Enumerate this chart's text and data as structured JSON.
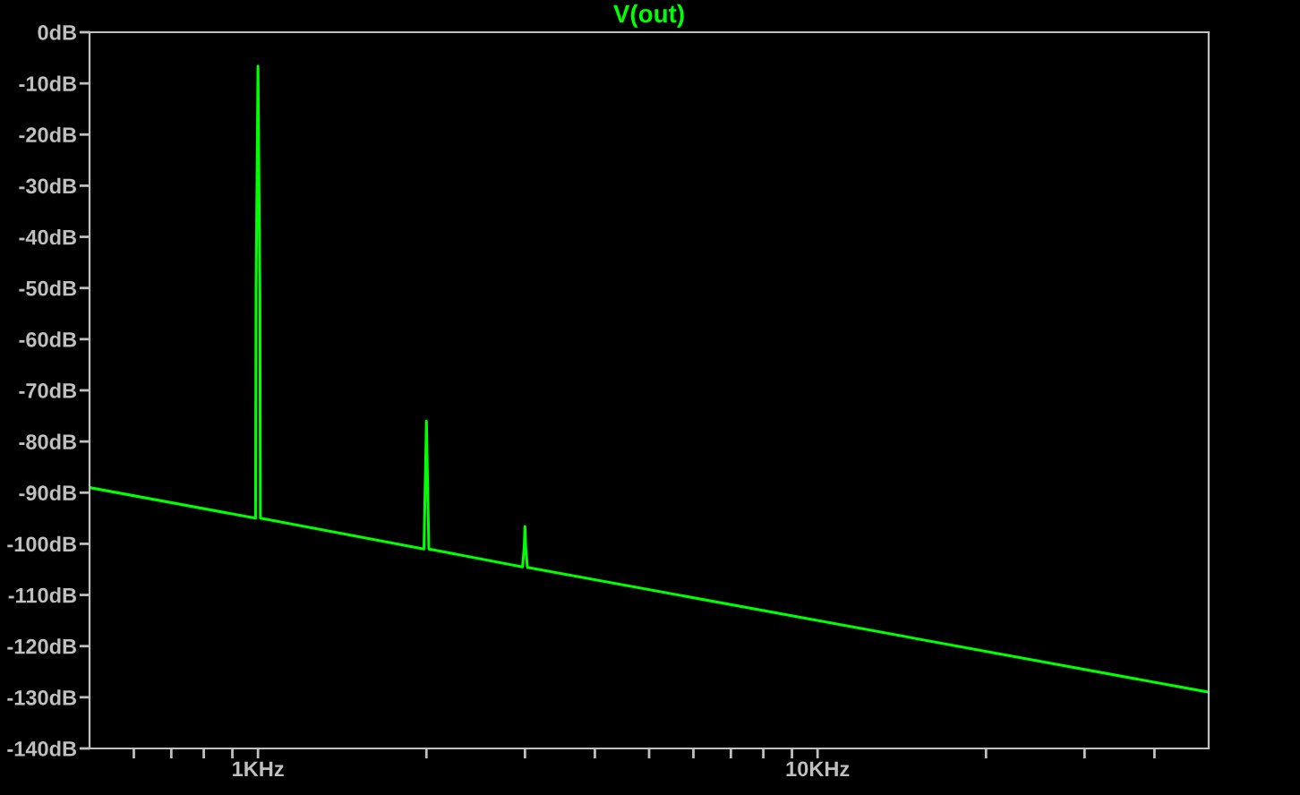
{
  "chart_data": {
    "type": "line",
    "title": "V(out)",
    "log": "x",
    "grid": false,
    "legend": false,
    "marker": "none",
    "line_style": "solid",
    "series": [
      {
        "color": "#00ff00",
        "x": [
          0.5,
          0.99,
          0.992,
          1,
          1.008,
          1.01,
          1.98,
          1.99,
          2,
          2.01,
          2.02,
          2.97,
          2.99,
          3,
          3.01,
          3.03,
          50
        ],
        "values": [
          -89,
          -95,
          -51,
          -6.6,
          -51,
          -95,
          -101,
          -88.6,
          -76,
          -88.6,
          -101,
          -104.5,
          -100.8,
          -96.6,
          -100.8,
          -104.6,
          -129
        ]
      }
    ],
    "xlim": [
      0.5,
      50
    ],
    "xticks": [
      {
        "value": 0.6,
        "label": null
      },
      {
        "value": 0.7,
        "label": null
      },
      {
        "value": 0.8,
        "label": null
      },
      {
        "value": 0.9,
        "label": null
      },
      {
        "value": 1,
        "label": "1KHz"
      },
      {
        "value": 2,
        "label": null
      },
      {
        "value": 3,
        "label": null
      },
      {
        "value": 4,
        "label": null
      },
      {
        "value": 5,
        "label": null
      },
      {
        "value": 6,
        "label": null
      },
      {
        "value": 7,
        "label": null
      },
      {
        "value": 8,
        "label": null
      },
      {
        "value": 9,
        "label": null
      },
      {
        "value": 10,
        "label": "10KHz"
      },
      {
        "value": 20,
        "label": null
      },
      {
        "value": 30,
        "label": null
      },
      {
        "value": 40,
        "label": null
      }
    ],
    "ylim": [
      -140,
      0
    ],
    "yticks": [
      {
        "value": 0,
        "label": "0dB"
      },
      {
        "value": -10,
        "label": "-10dB"
      },
      {
        "value": -20,
        "label": "-20dB"
      },
      {
        "value": -30,
        "label": "-30dB"
      },
      {
        "value": -40,
        "label": "-40dB"
      },
      {
        "value": -50,
        "label": "-50dB"
      },
      {
        "value": -60,
        "label": "-60dB"
      },
      {
        "value": -70,
        "label": "-70dB"
      },
      {
        "value": -80,
        "label": "-80dB"
      },
      {
        "value": -90,
        "label": "-90dB"
      },
      {
        "value": -100,
        "label": "-100dB"
      },
      {
        "value": -110,
        "label": "-110dB"
      },
      {
        "value": -120,
        "label": "-120dB"
      },
      {
        "value": -130,
        "label": "-130dB"
      },
      {
        "value": -140,
        "label": "-140dB"
      }
    ]
  }
}
